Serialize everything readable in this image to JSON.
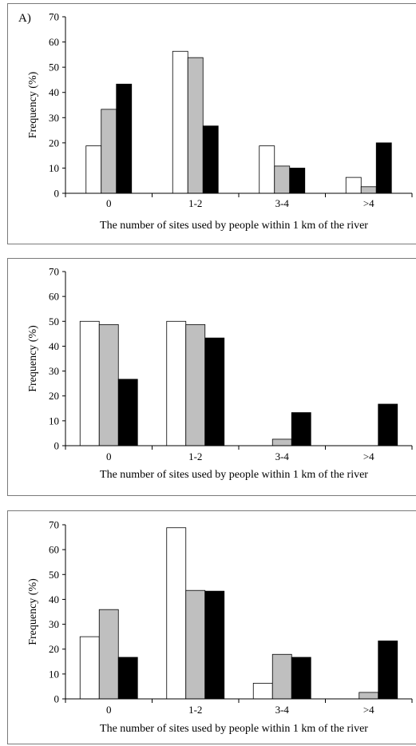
{
  "colors": {
    "series": [
      "#ffffff",
      "#bfbfbf",
      "#000000"
    ],
    "bar_stroke": "#000000",
    "axis": "#000000",
    "panel_border": "#7a7a7a"
  },
  "chart_data": [
    {
      "type": "bar",
      "panel_label": "A)",
      "categories": [
        "0",
        "1-2",
        "3-4",
        ">4"
      ],
      "series": [
        {
          "values": [
            18.8,
            56.3,
            18.8,
            6.3
          ]
        },
        {
          "values": [
            33.3,
            53.8,
            10.8,
            2.6
          ]
        },
        {
          "values": [
            43.3,
            26.7,
            10.0,
            20.0
          ]
        }
      ],
      "xlabel": "The number of sites used by people within 1 km of the river",
      "ylabel": "Frequency (%)",
      "ylim": [
        0,
        70
      ],
      "yticks": [
        0,
        10,
        20,
        30,
        40,
        50,
        60,
        70
      ],
      "grid": false,
      "legend": "none"
    },
    {
      "type": "bar",
      "panel_label": "",
      "categories": [
        "0",
        "1-2",
        "3-4",
        ">4"
      ],
      "series": [
        {
          "values": [
            50.0,
            50.0,
            0,
            0
          ]
        },
        {
          "values": [
            48.7,
            48.7,
            2.6,
            0
          ]
        },
        {
          "values": [
            26.7,
            43.3,
            13.3,
            16.7
          ]
        }
      ],
      "xlabel": "The number of sites used by people within 1 km of the river",
      "ylabel": "Frequency (%)",
      "ylim": [
        0,
        70
      ],
      "yticks": [
        0,
        10,
        20,
        30,
        40,
        50,
        60,
        70
      ],
      "grid": false,
      "legend": "none"
    },
    {
      "type": "bar",
      "panel_label": "",
      "categories": [
        "0",
        "1-2",
        "3-4",
        ">4"
      ],
      "series": [
        {
          "values": [
            25.0,
            68.8,
            6.3,
            0
          ]
        },
        {
          "values": [
            35.9,
            43.6,
            17.9,
            2.6
          ]
        },
        {
          "values": [
            16.7,
            43.3,
            16.7,
            23.3
          ]
        }
      ],
      "xlabel": "The number of sites used by people within 1 km of the river",
      "ylabel": "Frequency (%)",
      "ylim": [
        0,
        70
      ],
      "yticks": [
        0,
        10,
        20,
        30,
        40,
        50,
        60,
        70
      ],
      "grid": false,
      "legend": "none"
    }
  ]
}
